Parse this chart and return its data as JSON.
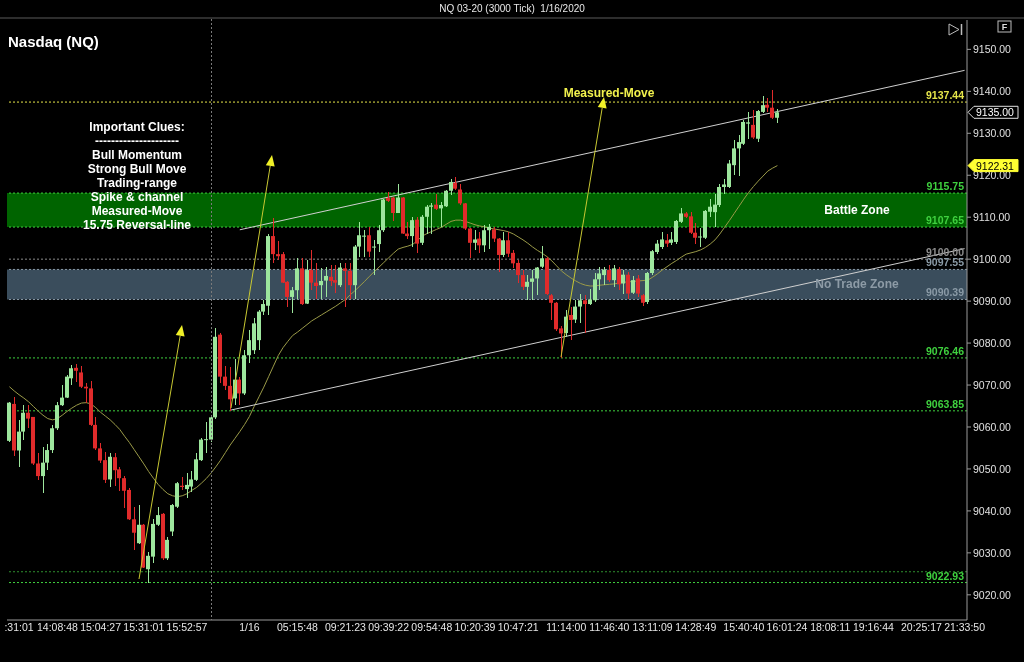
{
  "chart_data": {
    "type": "candlestick",
    "title": "NQ 03-20 (3000 Tick)  1/16/2020",
    "subtitle": "Nasdaq (NQ)",
    "categories": [
      null,
      null,
      ":31:01",
      null,
      null,
      null,
      null,
      null,
      null,
      null,
      "14:08:48",
      null,
      null,
      null,
      null,
      null,
      null,
      null,
      null,
      "15:04:27",
      null,
      null,
      null,
      null,
      null,
      null,
      null,
      null,
      "15:31:01",
      null,
      null,
      null,
      null,
      null,
      null,
      null,
      null,
      "15:52:57",
      null,
      null,
      null,
      null,
      null,
      null,
      null,
      null,
      null,
      null,
      null,
      null,
      "1/16",
      null,
      null,
      null,
      null,
      null,
      null,
      null,
      null,
      null,
      "05:15:48",
      null,
      null,
      null,
      null,
      null,
      null,
      null,
      null,
      null,
      "09:21:23",
      null,
      null,
      null,
      null,
      null,
      null,
      null,
      null,
      "09:39:22",
      null,
      null,
      null,
      null,
      null,
      null,
      null,
      null,
      "09:54:48",
      null,
      null,
      null,
      null,
      null,
      null,
      null,
      null,
      "10:20:39",
      null,
      null,
      null,
      null,
      null,
      null,
      null,
      null,
      "10:47:21",
      null,
      null,
      null,
      null,
      null,
      null,
      null,
      null,
      null,
      "11:14:00",
      null,
      null,
      null,
      null,
      null,
      null,
      null,
      null,
      "11:46:40",
      null,
      null,
      null,
      null,
      null,
      null,
      null,
      null,
      "13:11:09",
      null,
      null,
      null,
      null,
      null,
      null,
      null,
      null,
      "14:28:49",
      null,
      null,
      null,
      null,
      null,
      null,
      null,
      null,
      null,
      "15:40:40",
      null,
      null,
      null,
      null,
      null,
      null,
      null,
      null,
      "16:01:24",
      null,
      null,
      null,
      null,
      null,
      null,
      null,
      null,
      "18:08:11",
      null,
      null,
      null,
      null,
      null,
      null,
      null,
      null,
      "19:16:44",
      null,
      null,
      null,
      null,
      null,
      null,
      null,
      null,
      null,
      "20:25:17",
      null,
      null,
      null,
      null,
      null,
      null,
      null,
      null,
      "21:33:50"
    ],
    "ohlc": [
      [
        9056.7,
        9066.0,
        9056.5,
        9065.8
      ],
      [
        9065.5,
        9067.2,
        9053.1,
        9054.4
      ],
      [
        9054.4,
        9061.7,
        9050.5,
        9058.9
      ],
      [
        9058.9,
        9065.2,
        9057.0,
        9063.4
      ],
      [
        9063.4,
        9065.2,
        9059.7,
        9062.0
      ],
      [
        9062.4,
        9062.5,
        9051.0,
        9051.3
      ],
      [
        9051.3,
        9053.9,
        9047.4,
        9048.3
      ],
      [
        9048.3,
        9055.3,
        9044.2,
        9051.5
      ],
      [
        9051.5,
        9056.0,
        9049.7,
        9054.5
      ],
      [
        9054.5,
        9060.5,
        9053.7,
        9059.7
      ],
      [
        9059.7,
        9066.0,
        9059.3,
        9065.2
      ],
      [
        9065.2,
        9070.0,
        9065.0,
        9067.0
      ],
      [
        9067.0,
        9072.4,
        9066.8,
        9072.0
      ],
      [
        9071.6,
        9074.8,
        9070.0,
        9074.0
      ],
      [
        9074.1,
        9074.9,
        9070.8,
        9073.4
      ],
      [
        9073.0,
        9074.5,
        9069.4,
        9069.6
      ],
      [
        9069.6,
        9070.5,
        9065.6,
        9069.2
      ],
      [
        9069.2,
        9071.0,
        9060.2,
        9060.5
      ],
      [
        9060.5,
        9062.3,
        9054.5,
        9054.9
      ],
      [
        9054.9,
        9056.1,
        9051.3,
        9052.0
      ],
      [
        9052.1,
        9054.1,
        9046.6,
        9047.4
      ],
      [
        9047.5,
        9053.7,
        9045.8,
        9052.9
      ],
      [
        9052.8,
        9053.7,
        9046.0,
        9049.7
      ],
      [
        9049.9,
        9050.5,
        9044.8,
        9047.8
      ],
      [
        9047.8,
        9048.3,
        9040.6,
        9044.8
      ],
      [
        9045.0,
        9045.4,
        9037.8,
        9038.0
      ],
      [
        9038.0,
        9041.0,
        9030.7,
        9034.8
      ],
      [
        9032.3,
        9041.4,
        9032.0,
        9036.7
      ],
      [
        9036.7,
        9036.9,
        9026.3,
        9026.5
      ],
      [
        9026.1,
        9030.3,
        9022.9,
        9029.3
      ],
      [
        9029.1,
        9038.0,
        9027.7,
        9036.9
      ],
      [
        9036.7,
        9041.0,
        9036.3,
        9039.0
      ],
      [
        9039.3,
        9039.5,
        9028.3,
        9028.7
      ],
      [
        9028.7,
        9033.9,
        9028.3,
        9033.1
      ],
      [
        9035.1,
        9041.6,
        9034.0,
        9041.4
      ],
      [
        9041.0,
        9046.8,
        9040.6,
        9046.6
      ],
      [
        9046.0,
        9048.2,
        9045.0,
        9045.7
      ],
      [
        9045.2,
        9049.0,
        9043.0,
        9046.2
      ],
      [
        9045.8,
        9049.4,
        9044.6,
        9047.5
      ],
      [
        9047.4,
        9053.9,
        9047.2,
        9052.3
      ],
      [
        9052.1,
        9057.3,
        9052.0,
        9057.0
      ],
      [
        9057.0,
        9061.3,
        9053.9,
        9057.1
      ],
      [
        9057.0,
        9062.5,
        9056.5,
        9062.3
      ],
      [
        9062.3,
        9083.5,
        9061.8,
        9081.5
      ],
      [
        9082.0,
        9082.4,
        9070.4,
        9072.0
      ],
      [
        9072.0,
        9074.5,
        9068.8,
        9069.8
      ],
      [
        9069.8,
        9074.4,
        9063.9,
        9066.6
      ],
      [
        9066.8,
        9076.1,
        9065.2,
        9071.3
      ],
      [
        9071.3,
        9072.0,
        9065.2,
        9068.0
      ],
      [
        9068.0,
        9078.3,
        9067.6,
        9077.1
      ],
      [
        9077.1,
        9083.1,
        9075.2,
        9080.7
      ],
      [
        9078.3,
        9085.9,
        9077.5,
        9084.7
      ],
      [
        9080.7,
        9088.0,
        9078.3,
        9087.5
      ],
      [
        9087.5,
        9090.2,
        9086.7,
        9089.3
      ],
      [
        9088.9,
        9105.9,
        9086.7,
        9105.5
      ],
      [
        9105.5,
        9109.7,
        9099.0,
        9101.2
      ],
      [
        9101.2,
        9104.4,
        9099.7,
        9100.7
      ],
      [
        9101.2,
        9101.7,
        9094.2,
        9094.4
      ],
      [
        9094.6,
        9094.8,
        9088.6,
        9091.0
      ],
      [
        9091.0,
        9093.4,
        9087.2,
        9092.6
      ],
      [
        9092.6,
        9100.2,
        9090.6,
        9097.8
      ],
      [
        9097.8,
        9100.2,
        9089.1,
        9089.3
      ],
      [
        9089.4,
        9099.8,
        9089.2,
        9097.4
      ],
      [
        9097.4,
        9102.1,
        9092.6,
        9094.4
      ],
      [
        9094.4,
        9099.0,
        9090.6,
        9093.6
      ],
      [
        9093.8,
        9098.0,
        9090.6,
        9094.8
      ],
      [
        9094.9,
        9098.2,
        9091.0,
        9096.0
      ],
      [
        9095.8,
        9098.6,
        9093.6,
        9094.8
      ],
      [
        9095.0,
        9098.6,
        9092.0,
        9094.4
      ],
      [
        9093.8,
        9099.0,
        9093.4,
        9098.0
      ],
      [
        9097.8,
        9099.0,
        9088.6,
        9097.2
      ],
      [
        9097.2,
        9099.0,
        9090.6,
        9093.8
      ],
      [
        9093.8,
        9103.3,
        9090.6,
        9103.0
      ],
      [
        9103.0,
        9108.9,
        9100.6,
        9105.7
      ],
      [
        9105.5,
        9106.9,
        9100.6,
        9105.6
      ],
      [
        9105.7,
        9107.7,
        9100.6,
        9101.8
      ],
      [
        9102.8,
        9104.5,
        9096.2,
        9103.0
      ],
      [
        9103.6,
        9108.1,
        9101.7,
        9106.9
      ],
      [
        9106.9,
        9114.4,
        9106.5,
        9114.2
      ],
      [
        9114.6,
        9116.0,
        9113.6,
        9113.9
      ],
      [
        9114.7,
        9114.8,
        9109.1,
        9111.0
      ],
      [
        9111.0,
        9118.0,
        9110.9,
        9114.7
      ],
      [
        9114.7,
        9114.8,
        9106.0,
        9106.1
      ],
      [
        9106.1,
        9108.9,
        9104.9,
        9105.5
      ],
      [
        9105.5,
        9110.1,
        9103.0,
        9109.3
      ],
      [
        9109.4,
        9110.1,
        9101.4,
        9103.7
      ],
      [
        9103.9,
        9110.5,
        9103.3,
        9110.1
      ],
      [
        9110.1,
        9112.9,
        9106.1,
        9112.5
      ],
      [
        9112.5,
        9113.3,
        9106.1,
        9112.8
      ],
      [
        9113.0,
        9115.6,
        9111.7,
        9112.0
      ],
      [
        9112.1,
        9113.6,
        9107.7,
        9112.9
      ],
      [
        9112.6,
        9116.4,
        9112.5,
        9116.3
      ],
      [
        9116.3,
        9119.2,
        9115.2,
        9118.4
      ],
      [
        9118.2,
        9119.6,
        9116.4,
        9116.8
      ],
      [
        9116.6,
        9118.0,
        9112.9,
        9113.3
      ],
      [
        9113.3,
        9113.4,
        9106.9,
        9107.3
      ],
      [
        9107.3,
        9107.4,
        9100.2,
        9103.9
      ],
      [
        9103.9,
        9106.9,
        9102.1,
        9104.7
      ],
      [
        9104.9,
        9106.5,
        9101.5,
        9103.3
      ],
      [
        9103.3,
        9108.1,
        9101.7,
        9106.9
      ],
      [
        9106.9,
        9108.3,
        9102.5,
        9107.7
      ],
      [
        9107.1,
        9107.7,
        9104.1,
        9104.9
      ],
      [
        9104.9,
        9105.0,
        9097.0,
        9101.0
      ],
      [
        9101.0,
        9106.5,
        9100.6,
        9104.5
      ],
      [
        9104.5,
        9106.5,
        9100.4,
        9101.3
      ],
      [
        9101.5,
        9102.1,
        9097.8,
        9099.0
      ],
      [
        9099.1,
        9099.8,
        9094.2,
        9096.2
      ],
      [
        9096.2,
        9097.4,
        9092.6,
        9093.4
      ],
      [
        9093.4,
        9096.2,
        9090.2,
        9094.6
      ],
      [
        9094.6,
        9097.4,
        9090.2,
        9095.4
      ],
      [
        9095.4,
        9098.2,
        9091.4,
        9098.0
      ],
      [
        9098.2,
        9103.1,
        9097.8,
        9100.2
      ],
      [
        9100.2,
        9100.6,
        9091.4,
        9091.7
      ],
      [
        9091.4,
        9091.8,
        9085.5,
        9089.6
      ],
      [
        9089.6,
        9089.8,
        9082.9,
        9083.3
      ],
      [
        9083.5,
        9084.1,
        9076.5,
        9082.3
      ],
      [
        9082.4,
        9087.9,
        9081.5,
        9086.3
      ],
      [
        9086.7,
        9088.7,
        9080.7,
        9085.5
      ],
      [
        9085.6,
        9090.2,
        9084.7,
        9088.7
      ],
      [
        9088.7,
        9091.8,
        9084.7,
        9090.2
      ],
      [
        9090.2,
        9091.4,
        9082.5,
        9089.3
      ],
      [
        9089.3,
        9093.0,
        9089.0,
        9090.4
      ],
      [
        9090.2,
        9096.6,
        9089.8,
        9095.2
      ],
      [
        9095.2,
        9098.2,
        9092.6,
        9096.6
      ],
      [
        9096.2,
        9098.2,
        9093.8,
        9097.5
      ],
      [
        9097.4,
        9098.6,
        9094.6,
        9095.0
      ],
      [
        9095.0,
        9098.6,
        9093.4,
        9097.8
      ],
      [
        9097.6,
        9098.2,
        9092.6,
        9094.0
      ],
      [
        9094.2,
        9097.4,
        9091.8,
        9096.3
      ],
      [
        9096.3,
        9097.0,
        9090.6,
        9091.8
      ],
      [
        9092.0,
        9096.0,
        9091.8,
        9095.0
      ],
      [
        9095.4,
        9096.2,
        9091.0,
        9091.8
      ],
      [
        9091.4,
        9091.8,
        9088.8,
        9089.6
      ],
      [
        9089.8,
        9096.9,
        9089.3,
        9096.7
      ],
      [
        9096.7,
        9102.3,
        9096.2,
        9101.9
      ],
      [
        9101.7,
        9104.5,
        9101.3,
        9103.7
      ],
      [
        9102.9,
        9106.5,
        9102.5,
        9104.7
      ],
      [
        9104.5,
        9106.1,
        9102.9,
        9103.7
      ],
      [
        9103.9,
        9106.5,
        9103.3,
        9104.7
      ],
      [
        9104.1,
        9109.3,
        9103.7,
        9109.1
      ],
      [
        9108.9,
        9112.2,
        9108.5,
        9110.9
      ],
      [
        9110.9,
        9111.3,
        9109.7,
        9110.1
      ],
      [
        9110.2,
        9111.3,
        9106.0,
        9106.3
      ],
      [
        9106.3,
        9108.5,
        9103.7,
        9105.1
      ],
      [
        9105.2,
        9107.5,
        9103.0,
        9105.4
      ],
      [
        9105.1,
        9111.7,
        9104.9,
        9111.5
      ],
      [
        9111.3,
        9114.4,
        9110.1,
        9112.5
      ],
      [
        9111.2,
        9115.6,
        9107.7,
        9113.0
      ],
      [
        9112.9,
        9117.8,
        9112.5,
        9117.2
      ],
      [
        9117.2,
        9119.2,
        9115.6,
        9117.8
      ],
      [
        9117.2,
        9123.6,
        9117.0,
        9122.8
      ],
      [
        9122.4,
        9128.3,
        9120.0,
        9126.4
      ],
      [
        9126.4,
        9129.5,
        9119.8,
        9127.9
      ],
      [
        9127.5,
        9133.1,
        9127.1,
        9132.7
      ],
      [
        9132.3,
        9135.1,
        9128.7,
        9132.6
      ],
      [
        9132.0,
        9135.5,
        9128.7,
        9129.0
      ],
      [
        9128.7,
        9135.6,
        9127.9,
        9135.3
      ],
      [
        9135.1,
        9138.8,
        9134.8,
        9136.7
      ],
      [
        9136.8,
        9138.3,
        9135.1,
        9136.1
      ],
      [
        9136.1,
        9140.2,
        9133.5,
        9133.7
      ],
      [
        9133.7,
        9135.8,
        9132.5,
        9135.0
      ],
      null,
      null,
      null,
      null,
      null,
      null,
      null,
      null,
      null,
      null,
      null,
      null,
      null,
      null,
      null,
      null,
      null,
      null,
      null,
      null,
      null,
      null,
      null,
      null,
      null,
      null,
      null,
      null,
      null,
      null,
      null,
      null,
      null,
      null,
      null,
      null,
      null,
      null,
      null
    ],
    "colors": [
      "#9de69d",
      "#e02b2b",
      "#9de69d",
      "#9de69d",
      "#e02b2b",
      "#e02b2b",
      "#e02b2b",
      "#9de69d",
      "#9de69d",
      "#9de69d",
      "#9de69d",
      "#9de69d",
      "#9de69d",
      "#9de69d",
      "#e02b2b",
      "#e02b2b",
      "#e02b2b",
      "#e02b2b",
      "#e02b2b",
      "#e02b2b",
      "#e02b2b",
      "#9de69d",
      "#e02b2b",
      "#e02b2b",
      "#e02b2b",
      "#e02b2b",
      "#e02b2b",
      "#9de69d",
      "#e02b2b",
      "#9de69d",
      "#9de69d",
      "#9de69d",
      "#e02b2b",
      "#9de69d",
      "#9de69d",
      "#9de69d",
      "#e02b2b",
      "#9de69d",
      "#9de69d",
      "#9de69d",
      "#9de69d",
      "#9de69d",
      "#9de69d",
      "#9de69d",
      "#e02b2b",
      "#e02b2b",
      "#e02b2b",
      "#9de69d",
      "#e02b2b",
      "#9de69d",
      "#9de69d",
      "#9de69d",
      "#9de69d",
      "#9de69d",
      "#9de69d",
      "#e02b2b",
      "#e02b2b",
      "#e02b2b",
      "#e02b2b",
      "#9de69d",
      "#9de69d",
      "#e02b2b",
      "#9de69d",
      "#e02b2b",
      "#e02b2b",
      "#9de69d",
      "#9de69d",
      "#e02b2b",
      "#e02b2b",
      "#9de69d",
      "#e02b2b",
      "#e02b2b",
      "#9de69d",
      "#9de69d",
      "#9de69d",
      "#e02b2b",
      "#9de69d",
      "#9de69d",
      "#9de69d",
      "#e02b2b",
      "#e02b2b",
      "#9de69d",
      "#e02b2b",
      "#e02b2b",
      "#9de69d",
      "#e02b2b",
      "#9de69d",
      "#9de69d",
      "#9de69d",
      "#e02b2b",
      "#9de69d",
      "#9de69d",
      "#9de69d",
      "#e02b2b",
      "#e02b2b",
      "#e02b2b",
      "#e02b2b",
      "#9de69d",
      "#e02b2b",
      "#9de69d",
      "#9de69d",
      "#e02b2b",
      "#e02b2b",
      "#9de69d",
      "#e02b2b",
      "#e02b2b",
      "#e02b2b",
      "#e02b2b",
      "#9de69d",
      "#9de69d",
      "#9de69d",
      "#9de69d",
      "#e02b2b",
      "#e02b2b",
      "#e02b2b",
      "#e02b2b",
      "#9de69d",
      "#e02b2b",
      "#9de69d",
      "#9de69d",
      "#e02b2b",
      "#9de69d",
      "#9de69d",
      "#9de69d",
      "#9de69d",
      "#e02b2b",
      "#9de69d",
      "#e02b2b",
      "#9de69d",
      "#e02b2b",
      "#9de69d",
      "#e02b2b",
      "#e02b2b",
      "#9de69d",
      "#9de69d",
      "#9de69d",
      "#9de69d",
      "#e02b2b",
      "#9de69d",
      "#9de69d",
      "#9de69d",
      "#e02b2b",
      "#e02b2b",
      "#e02b2b",
      "#9de69d",
      "#9de69d",
      "#9de69d",
      "#9de69d",
      "#9de69d",
      "#9de69d",
      "#9de69d",
      "#9de69d",
      "#9de69d",
      "#9de69d",
      "#9de69d",
      "#e02b2b",
      "#9de69d",
      "#9de69d",
      "#e02b2b",
      "#e02b2b",
      "#9de69d",
      null,
      null,
      null,
      null,
      null,
      null,
      null,
      null,
      null,
      null,
      null,
      null,
      null,
      null,
      null,
      null,
      null,
      null,
      null,
      null,
      null,
      null,
      null,
      null,
      null,
      null,
      null,
      null,
      null,
      null,
      null,
      null,
      null,
      null,
      null,
      null,
      null,
      null,
      null
    ],
    "series": [
      {
        "type": "line",
        "color": "#9a9a48",
        "values": [
          9069.6,
          9068.6,
          9067.7,
          9066.9,
          9066.0,
          9064.9,
          9063.8,
          9062.8,
          9062.0,
          9061.7,
          9062.0,
          9062.8,
          9063.7,
          9064.5,
          9065.2,
          9065.7,
          9065.8,
          9065.5,
          9064.6,
          9063.5,
          9062.6,
          9061.7,
          9060.6,
          9059.4,
          9057.8,
          9056.3,
          9054.6,
          9052.9,
          9051.2,
          9049.4,
          9047.8,
          9046.3,
          9045.1,
          9044.1,
          9043.6,
          9043.4,
          9043.6,
          9044.1,
          9044.9,
          9045.6,
          9046.6,
          9047.7,
          9049.0,
          9050.5,
          9052.1,
          9053.9,
          9055.7,
          9057.3,
          9058.9,
          9060.6,
          9062.5,
          9064.9,
          9067.2,
          9069.5,
          9072.0,
          9074.5,
          9077.0,
          9078.9,
          9080.4,
          9081.8,
          9082.6,
          9083.5,
          9084.4,
          9085.3,
          9086.0,
          9086.7,
          9087.4,
          9088.1,
          9088.8,
          9089.6,
          9090.4,
          9091.5,
          9092.5,
          9093.6,
          9094.7,
          9095.9,
          9097.0,
          9098.1,
          9099.2,
          9100.3,
          9101.4,
          9102.4,
          9102.8,
          9103.1,
          9103.5,
          9104.4,
          9105.5,
          9106.1,
          9106.6,
          9107.1,
          9107.6,
          9108.3,
          9109.0,
          9109.3,
          9109.3,
          9109.0,
          9108.6,
          9108.2,
          9107.9,
          9107.7,
          9107.4,
          9107.2,
          9107.0,
          9106.8,
          9106.5,
          9106.0,
          9105.3,
          9104.6,
          9103.8,
          9102.9,
          9102.1,
          9101.4,
          9100.6,
          9099.6,
          9098.4,
          9097.2,
          9096.3,
          9095.5,
          9094.8,
          9094.2,
          9093.8,
          9093.6,
          9093.6,
          9093.8,
          9093.9,
          9094.0,
          9094.1,
          9094.3,
          9094.5,
          9094.6,
          9094.7,
          9094.8,
          9094.9,
          9095.0,
          9095.7,
          9096.5,
          9097.4,
          9098.2,
          9099.0,
          9099.7,
          9100.5,
          9101.2,
          9101.5,
          9101.8,
          9102.2,
          9102.8,
          9103.6,
          9104.6,
          9106.0,
          9107.6,
          9109.2,
          9110.9,
          9112.6,
          9114.3,
          9115.9,
          9117.3,
          9118.6,
          9119.8,
          9121.0,
          9121.7,
          9122.3,
          null,
          null,
          null,
          null,
          null,
          null,
          null,
          null,
          null,
          null,
          null,
          null,
          null,
          null,
          null,
          null,
          null,
          null,
          null,
          null,
          null,
          null,
          null,
          null,
          null,
          null,
          null,
          null,
          null,
          null,
          null,
          null,
          null,
          null,
          null,
          null,
          null,
          null,
          null
        ]
      },
      {
        "type": "line",
        "color": "#d0d0d0",
        "values": [
          null,
          null,
          null,
          null,
          null,
          null,
          null,
          null,
          null,
          null,
          null,
          null,
          null,
          null,
          null,
          null,
          null,
          null,
          null,
          null,
          null,
          null,
          null,
          null,
          null,
          null,
          null,
          null,
          null,
          null,
          null,
          null,
          null,
          null,
          null,
          null,
          null,
          null,
          null,
          null,
          null,
          null,
          null,
          null,
          null,
          null,
          null,
          null,
          9107,
          null,
          null,
          null,
          null,
          null,
          null,
          null,
          null,
          null,
          null,
          null,
          null,
          null,
          null,
          null,
          null,
          null,
          null,
          null,
          null,
          null,
          null,
          null,
          null,
          null,
          null,
          null,
          null,
          null,
          null,
          null,
          null,
          null,
          null,
          null,
          null,
          null,
          null,
          null,
          null,
          null,
          null,
          null,
          null,
          null,
          null,
          null,
          null,
          null,
          null,
          null,
          null,
          null,
          null,
          null,
          null,
          null,
          null,
          null,
          null,
          null,
          null,
          null,
          null,
          null,
          null,
          null,
          null,
          null,
          null,
          null,
          null,
          null,
          null,
          null,
          null,
          null,
          null,
          null,
          null,
          null,
          null,
          null,
          null,
          null,
          null,
          null,
          null,
          null,
          null,
          null,
          null,
          null,
          null,
          null,
          null,
          null,
          null,
          null,
          null,
          null,
          null,
          null,
          null,
          null,
          null,
          null,
          null,
          null,
          null,
          null,
          null,
          null,
          null,
          null,
          null,
          null,
          null,
          null,
          null,
          null,
          null,
          null,
          null,
          null,
          null,
          null,
          null,
          null,
          null,
          null,
          null,
          null,
          null,
          null,
          null,
          null,
          null,
          null,
          null,
          null,
          null,
          null,
          null,
          null,
          null,
          null,
          null,
          null,
          null,
          9145
        ]
      },
      {
        "type": "line",
        "color": "#d0d0d0",
        "values": [
          null,
          null,
          null,
          null,
          null,
          null,
          null,
          null,
          null,
          null,
          null,
          null,
          null,
          null,
          null,
          null,
          null,
          null,
          null,
          null,
          null,
          null,
          null,
          null,
          null,
          null,
          null,
          null,
          null,
          null,
          null,
          null,
          null,
          null,
          null,
          null,
          null,
          null,
          null,
          null,
          null,
          null,
          null,
          null,
          null,
          null,
          9064,
          null,
          null,
          null,
          null,
          null,
          null,
          null,
          null,
          null,
          null,
          null,
          null,
          null,
          null,
          null,
          null,
          null,
          null,
          null,
          null,
          null,
          null,
          null,
          null,
          null,
          null,
          null,
          null,
          null,
          null,
          null,
          null,
          null,
          null,
          null,
          null,
          null,
          null,
          null,
          null,
          null,
          null,
          null,
          null,
          null,
          null,
          null,
          null,
          null,
          null,
          null,
          null,
          null,
          null,
          null,
          null,
          null,
          null,
          null,
          null,
          null,
          null,
          null,
          null,
          null,
          null,
          null,
          null,
          null,
          null,
          null,
          null,
          null,
          null,
          null,
          null,
          null,
          null,
          null,
          null,
          null,
          null,
          null,
          null,
          null,
          null,
          null,
          null,
          null,
          null,
          null,
          null,
          null,
          null,
          null,
          null,
          null,
          null,
          null,
          null,
          null,
          null,
          null,
          null,
          null,
          null,
          null,
          null,
          null,
          null,
          null,
          null,
          null,
          null,
          null,
          null,
          null,
          null,
          null,
          null,
          null,
          null,
          null,
          null,
          null,
          null,
          null,
          null,
          null,
          null,
          null,
          null,
          null,
          null,
          null,
          null,
          null,
          null,
          null,
          null,
          null,
          null,
          null,
          null,
          null,
          null,
          null,
          null,
          null,
          null,
          null,
          null,
          9102.5
        ]
      }
    ],
    "ylim": [
      9014,
      9157
    ],
    "yticks": [
      {
        "value": 9020,
        "label": "9020.00"
      },
      {
        "value": 9030,
        "label": "9030.00"
      },
      {
        "value": 9040,
        "label": "9040.00"
      },
      {
        "value": 9050,
        "label": "9050.00"
      },
      {
        "value": 9060,
        "label": "9060.00"
      },
      {
        "value": 9070,
        "label": "9070.00"
      },
      {
        "value": 9080,
        "label": "9080.00"
      },
      {
        "value": 9090,
        "label": "9090.00"
      },
      {
        "value": 9100,
        "label": "9100.00"
      },
      {
        "value": 9110,
        "label": "9110.00"
      },
      {
        "value": 9120,
        "label": "9120.00"
      },
      {
        "value": 9130,
        "label": "9130.00"
      },
      {
        "value": 9140,
        "label": "9140.00"
      },
      {
        "value": 9150,
        "label": "9150.00"
      }
    ],
    "bands": [
      {
        "axis": "y",
        "from": 9107.65,
        "to": 9115.75,
        "label": "Battle Zone",
        "color": "#006400"
      },
      {
        "axis": "y",
        "from": 9090.39,
        "to": 9097.55,
        "label": "No Trade Zone",
        "color": "#3a4d5c"
      }
    ],
    "ref_lines": [
      {
        "axis": "y",
        "value": 9137.44,
        "label": "9137.44",
        "color": "#e6e64a",
        "line_style": "dotted"
      },
      {
        "axis": "y",
        "value": 9115.75,
        "label": "9115.75",
        "color": "#3fd13f",
        "line_style": "dotted"
      },
      {
        "axis": "y",
        "value": 9107.65,
        "label": "9107.65",
        "color": "#3fd13f",
        "line_style": "dotted"
      },
      {
        "axis": "y",
        "value": 9100,
        "label": "9100.00",
        "color": "#8c8c8c",
        "line_style": "dotted"
      },
      {
        "axis": "y",
        "value": 9097.55,
        "label": "9097.55",
        "color": "#8a9aa6",
        "line_style": "dotted"
      },
      {
        "axis": "y",
        "value": 9090.39,
        "label": "9090.39",
        "color": "#8a9aa6",
        "line_style": "dotted"
      },
      {
        "axis": "y",
        "value": 9076.46,
        "label": "9076.46",
        "color": "#3fd13f",
        "line_style": "dotted"
      },
      {
        "axis": "y",
        "value": 9063.85,
        "label": "9063.85",
        "color": "#3fd13f",
        "line_style": "dotted"
      },
      {
        "axis": "y",
        "value": 9025.5,
        "color": "#2f8f2f",
        "line_style": "dotted"
      },
      {
        "axis": "y",
        "value": 9022.93,
        "label": "9022.93",
        "color": "#3fd13f",
        "line_style": "dotted"
      }
    ],
    "annotations": [
      "Important Clues:",
      "---------------------",
      "Bull Momentum",
      "Strong Bull Move",
      "Trading-range",
      "Spike & channel",
      "Measured-Move",
      "15.75 Reversal-line",
      {
        "text": "Measured-Move",
        "y": 9137.44
      },
      "F",
      "9135.00",
      "9122.31"
    ]
  }
}
